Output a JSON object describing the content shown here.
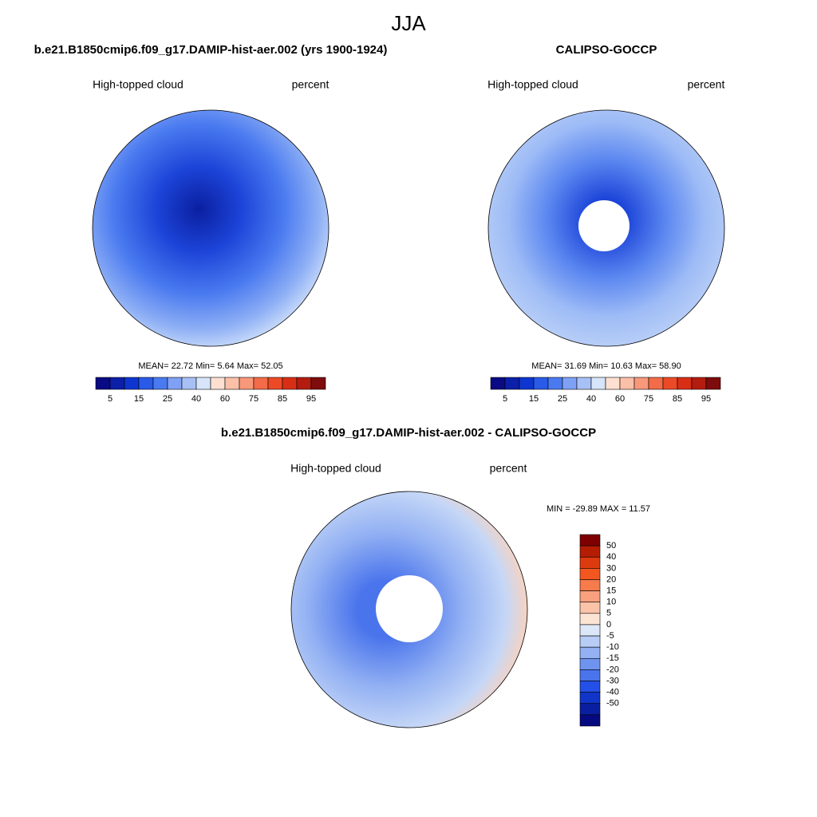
{
  "title": "JJA",
  "panels": [
    {
      "title": "b.e21.B1850cmip6.f09_g17.DAMIP-hist-aer.002 (yrs 1900-1924)",
      "left": "High-topped cloud",
      "right": "percent",
      "stats": "MEAN=  22.72  Min=   5.64  Max=  52.05"
    },
    {
      "title": "CALIPSO-GOCCP",
      "left": "High-topped cloud",
      "right": "percent",
      "stats": "MEAN=  31.69  Min=  10.63  Max=  58.90"
    },
    {
      "title": "b.e21.B1850cmip6.f09_g17.DAMIP-hist-aer.002 - CALIPSO-GOCCP",
      "left": "High-topped cloud",
      "right": "percent",
      "stats": "MIN = -29.89 MAX =  11.57"
    }
  ],
  "colorbars": [
    {
      "labels": [
        "5",
        "15",
        "25",
        "40",
        "60",
        "75",
        "85",
        "95"
      ],
      "colors": [
        "#0a0a85",
        "#0c1fa8",
        "#0d36d1",
        "#2a5ae8",
        "#4a7af0",
        "#7fa1f5",
        "#a7c1f7",
        "#d7e5fa",
        "#fde0d2",
        "#fbc0a8",
        "#f8987a",
        "#f36b48",
        "#ec4a26",
        "#d92e16",
        "#b31c0f",
        "#7e0c0c"
      ]
    },
    {
      "labels": [
        "50",
        "40",
        "30",
        "20",
        "15",
        "10",
        "5",
        "0",
        "-5",
        "-10",
        "-15",
        "-20",
        "-30",
        "-40",
        "-50"
      ],
      "colors": [
        "#7f0000",
        "#b41d04",
        "#de3a0f",
        "#f4561f",
        "#f77b4b",
        "#f9a07e",
        "#fbc4a8",
        "#fce4d4",
        "#dce8f8",
        "#b7cdf6",
        "#93b1f3",
        "#6f94f0",
        "#4a74ec",
        "#2350e6",
        "#1035c8",
        "#0a1fa0",
        "#050a80"
      ]
    }
  ]
}
